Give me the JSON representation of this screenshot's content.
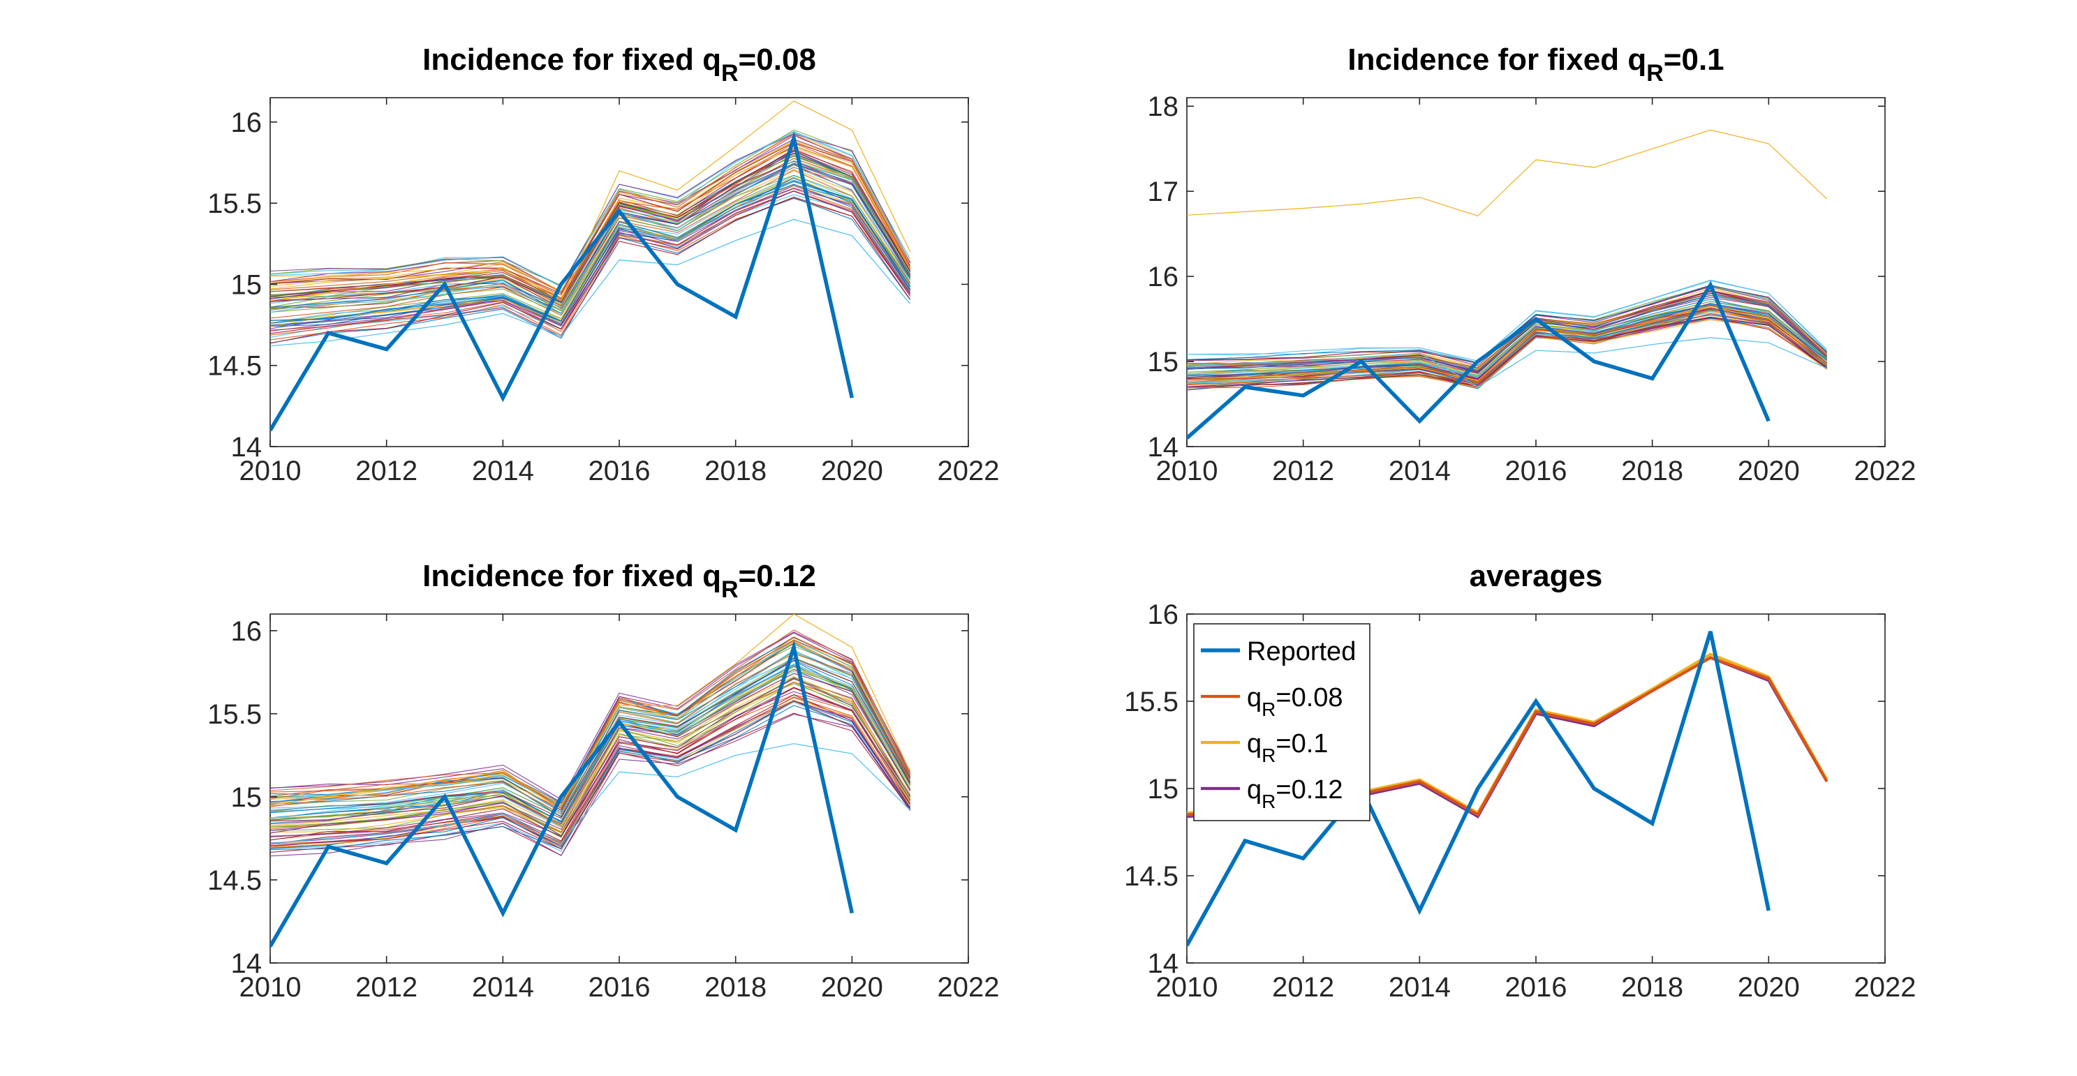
{
  "colors": {
    "reported": "#0072BD",
    "q008": "#D95319",
    "q01": "#EDB120",
    "q012": "#7E2F8E",
    "axis": "#262626",
    "palette": [
      "#0072BD",
      "#D95319",
      "#EDB120",
      "#7E2F8E",
      "#77AC30",
      "#4DBEEE",
      "#A2142F"
    ]
  },
  "chart_data": [
    {
      "type": "line",
      "title": "Incidence for fixed q",
      "title_subscript": "R",
      "title_suffix": "=0.08",
      "xlim": [
        2010,
        2022
      ],
      "ylim": [
        14,
        16.15
      ],
      "xticks": [
        "2010",
        "2012",
        "2014",
        "2016",
        "2018",
        "2020",
        "2022"
      ],
      "yticks": [
        "14",
        "14.5",
        "15",
        "15.5",
        "16"
      ],
      "x": [
        2010,
        2011,
        2012,
        2013,
        2014,
        2015,
        2016,
        2017,
        2018,
        2019,
        2020,
        2021
      ],
      "reported": [
        14.1,
        14.7,
        14.6,
        15.0,
        14.3,
        15.0,
        15.45,
        15.0,
        14.8,
        15.9,
        14.3,
        null
      ],
      "ensemble": {
        "count": 60,
        "center": [
          14.85,
          14.88,
          14.91,
          14.96,
          15.0,
          14.83,
          15.43,
          15.35,
          15.56,
          15.73,
          15.6,
          15.03
        ],
        "spread": [
          0.22,
          0.21,
          0.2,
          0.19,
          0.17,
          0.16,
          0.17,
          0.17,
          0.19,
          0.22,
          0.21,
          0.12
        ]
      },
      "extra_series": [
        {
          "values": [
            14.9,
            14.95,
            15.0,
            15.05,
            15.1,
            14.9,
            15.7,
            15.58,
            15.85,
            16.13,
            15.95,
            15.2
          ]
        },
        {
          "values": [
            14.62,
            14.65,
            14.7,
            14.75,
            14.82,
            14.68,
            15.15,
            15.12,
            15.27,
            15.4,
            15.3,
            14.88
          ]
        }
      ]
    },
    {
      "type": "line",
      "title": "Incidence for fixed q",
      "title_subscript": "R",
      "title_suffix": "=0.1",
      "xlim": [
        2010,
        2022
      ],
      "ylim": [
        14,
        18.1
      ],
      "xticks": [
        "2010",
        "2012",
        "2014",
        "2016",
        "2018",
        "2020",
        "2022"
      ],
      "yticks": [
        "14",
        "15",
        "16",
        "17",
        "18"
      ],
      "x": [
        2010,
        2011,
        2012,
        2013,
        2014,
        2015,
        2016,
        2017,
        2018,
        2019,
        2020,
        2021
      ],
      "reported": [
        14.1,
        14.7,
        14.6,
        15.0,
        14.3,
        15.0,
        15.5,
        15.0,
        14.8,
        15.9,
        14.3,
        null
      ],
      "ensemble": {
        "count": 60,
        "center": [
          14.88,
          14.9,
          14.93,
          14.97,
          15.01,
          14.85,
          15.44,
          15.37,
          15.56,
          15.73,
          15.6,
          15.03
        ],
        "spread": [
          0.22,
          0.21,
          0.2,
          0.19,
          0.18,
          0.17,
          0.16,
          0.16,
          0.2,
          0.24,
          0.22,
          0.12
        ]
      },
      "extra_series": [
        {
          "values": [
            16.72,
            16.76,
            16.8,
            16.85,
            16.93,
            16.71,
            17.37,
            17.28,
            17.5,
            17.72,
            17.56,
            16.91
          ]
        },
        {
          "values": [
            14.95,
            14.98,
            15.0,
            15.05,
            15.1,
            14.7,
            15.13,
            15.1,
            15.2,
            15.28,
            15.22,
            14.92
          ]
        }
      ]
    },
    {
      "type": "line",
      "title": "Incidence for fixed q",
      "title_subscript": "R",
      "title_suffix": "=0.12",
      "xlim": [
        2010,
        2022
      ],
      "ylim": [
        14,
        16.1
      ],
      "xticks": [
        "2010",
        "2012",
        "2014",
        "2016",
        "2018",
        "2020",
        "2022"
      ],
      "yticks": [
        "14",
        "14.5",
        "15",
        "15.5",
        "16"
      ],
      "x": [
        2010,
        2011,
        2012,
        2013,
        2014,
        2015,
        2016,
        2017,
        2018,
        2019,
        2020,
        2021
      ],
      "reported": [
        14.1,
        14.7,
        14.6,
        15.0,
        14.3,
        15.0,
        15.45,
        15.0,
        14.8,
        15.9,
        14.3,
        null
      ],
      "ensemble": {
        "count": 60,
        "center": [
          14.85,
          14.87,
          14.9,
          14.95,
          15.0,
          14.82,
          15.43,
          15.36,
          15.57,
          15.76,
          15.62,
          15.03
        ],
        "spread": [
          0.2,
          0.2,
          0.2,
          0.19,
          0.18,
          0.16,
          0.19,
          0.18,
          0.22,
          0.25,
          0.22,
          0.12
        ]
      },
      "extra_series": [
        {
          "values": [
            14.95,
            15.0,
            15.05,
            15.1,
            15.15,
            14.95,
            15.55,
            15.55,
            15.8,
            16.1,
            15.9,
            15.15
          ]
        },
        {
          "values": [
            14.72,
            14.75,
            14.78,
            14.83,
            14.9,
            14.72,
            15.15,
            15.12,
            15.25,
            15.32,
            15.26,
            14.92
          ]
        }
      ]
    },
    {
      "type": "line",
      "title": "averages",
      "xlim": [
        2010,
        2022
      ],
      "ylim": [
        14,
        16
      ],
      "xticks": [
        "2010",
        "2012",
        "2014",
        "2016",
        "2018",
        "2020",
        "2022"
      ],
      "yticks": [
        "14",
        "14.5",
        "15",
        "15.5",
        "16"
      ],
      "x": [
        2010,
        2011,
        2012,
        2013,
        2014,
        2015,
        2016,
        2017,
        2018,
        2019,
        2020,
        2021
      ],
      "legend_position": "top-left",
      "series": [
        {
          "name": "Reported",
          "sub": "",
          "suffix": "",
          "color_key": "reported",
          "width": 3.5,
          "values": [
            14.1,
            14.7,
            14.6,
            15.0,
            14.3,
            15.0,
            15.5,
            15.0,
            14.8,
            15.9,
            14.3,
            null
          ]
        },
        {
          "name": "q",
          "sub": "R",
          "suffix": "=0.08",
          "color_key": "q008",
          "width": 2.6,
          "values": [
            14.85,
            14.87,
            14.9,
            14.97,
            15.04,
            14.85,
            15.44,
            15.37,
            15.56,
            15.75,
            15.63,
            15.04
          ]
        },
        {
          "name": "q",
          "sub": "R",
          "suffix": "=0.1",
          "color_key": "q01",
          "width": 2.6,
          "values": [
            14.86,
            14.88,
            14.91,
            14.98,
            15.05,
            14.86,
            15.45,
            15.38,
            15.57,
            15.77,
            15.64,
            15.05
          ]
        },
        {
          "name": "q",
          "sub": "R",
          "suffix": "=0.12",
          "color_key": "q012",
          "width": 2.6,
          "values": [
            14.84,
            14.86,
            14.89,
            14.96,
            15.03,
            14.84,
            15.43,
            15.36,
            15.56,
            15.75,
            15.62,
            15.04
          ]
        }
      ]
    }
  ]
}
